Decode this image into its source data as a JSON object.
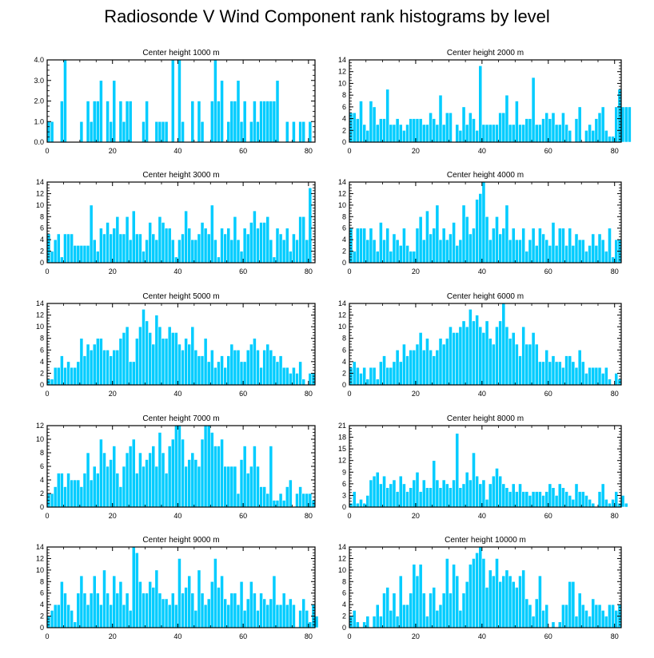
{
  "title": "Radiosonde V Wind Component rank histograms by level",
  "bar_color": "#00ccff",
  "bar_edge_color": "#ffffff",
  "chart_data": [
    {
      "type": "bar",
      "title": "Center height 1000 m",
      "x_start": 0,
      "xlim": [
        0,
        82
      ],
      "ylim": [
        0,
        4
      ],
      "yticks": [
        "0.0",
        "1.0",
        "2.0",
        "3.0",
        "4.0"
      ],
      "ytick_values": [
        0,
        1,
        2,
        3,
        4
      ],
      "xticks": [
        0,
        20,
        40,
        60,
        80
      ],
      "values": [
        1,
        1,
        0,
        0,
        2,
        4,
        0,
        0,
        0,
        0,
        1,
        0,
        2,
        1,
        2,
        2,
        3,
        0,
        2,
        1,
        3,
        0,
        2,
        1,
        2,
        2,
        0,
        0,
        0,
        1,
        2,
        0,
        0,
        1,
        1,
        1,
        1,
        0,
        4,
        0,
        4,
        1,
        0,
        0,
        2,
        0,
        2,
        1,
        0,
        0,
        2,
        4,
        2,
        3,
        0,
        1,
        2,
        2,
        3,
        1,
        2,
        0,
        1,
        2,
        1,
        2,
        2,
        2,
        2,
        2,
        3,
        0,
        0,
        1,
        0,
        1,
        0,
        1,
        1,
        0,
        1,
        0
      ]
    },
    {
      "type": "bar",
      "title": "Center height 2000 m",
      "x_start": 0,
      "xlim": [
        0,
        82
      ],
      "ylim": [
        0,
        14
      ],
      "yticks": [
        "0",
        "2",
        "4",
        "6",
        "8",
        "10",
        "12",
        "14"
      ],
      "ytick_values": [
        0,
        2,
        4,
        6,
        8,
        10,
        12,
        14
      ],
      "xticks": [
        0,
        20,
        40,
        60,
        80
      ],
      "values": [
        5,
        5,
        4,
        7,
        3,
        2,
        7,
        6,
        3,
        4,
        4,
        9,
        3,
        3,
        4,
        3,
        2,
        3,
        4,
        4,
        4,
        4,
        3,
        3,
        5,
        4,
        3,
        8,
        3,
        5,
        5,
        0,
        3,
        2,
        6,
        3,
        5,
        4,
        2,
        13,
        3,
        3,
        3,
        3,
        3,
        5,
        5,
        8,
        3,
        3,
        7,
        3,
        3,
        4,
        4,
        11,
        3,
        3,
        4,
        5,
        4,
        5,
        3,
        3,
        5,
        3,
        2,
        0,
        4,
        6,
        0,
        2,
        3,
        2,
        4,
        5,
        6,
        2,
        1,
        1,
        6,
        9,
        6,
        6,
        6
      ]
    },
    {
      "type": "bar",
      "title": "Center height 3000 m",
      "x_start": 0,
      "xlim": [
        0,
        82
      ],
      "ylim": [
        0,
        14
      ],
      "yticks": [
        "0",
        "2",
        "4",
        "6",
        "8",
        "10",
        "12",
        "14"
      ],
      "ytick_values": [
        0,
        2,
        4,
        6,
        8,
        10,
        12,
        14
      ],
      "xticks": [
        0,
        20,
        40,
        60,
        80
      ],
      "values": [
        5,
        2,
        4,
        5,
        1,
        5,
        5,
        5,
        3,
        3,
        3,
        3,
        3,
        10,
        4,
        2,
        6,
        5,
        7,
        5,
        6,
        8,
        5,
        5,
        8,
        4,
        9,
        5,
        5,
        2,
        4,
        7,
        5,
        4,
        8,
        7,
        6,
        6,
        4,
        1,
        4,
        5,
        9,
        6,
        4,
        4,
        5,
        7,
        6,
        5,
        10,
        4,
        1,
        6,
        5,
        6,
        4,
        8,
        4,
        2,
        6,
        5,
        7,
        9,
        6,
        7,
        7,
        8,
        4,
        1,
        6,
        5,
        4,
        6,
        2,
        5,
        4,
        8,
        8,
        4,
        13
      ]
    },
    {
      "type": "bar",
      "title": "Center height 4000 m",
      "x_start": 0,
      "xlim": [
        0,
        82
      ],
      "ylim": [
        0,
        14
      ],
      "yticks": [
        "0",
        "2",
        "4",
        "6",
        "8",
        "10",
        "12",
        "14"
      ],
      "ytick_values": [
        0,
        2,
        4,
        6,
        8,
        10,
        12,
        14
      ],
      "xticks": [
        0,
        20,
        40,
        60,
        80
      ],
      "values": [
        6,
        2,
        6,
        6,
        6,
        4,
        6,
        4,
        2,
        7,
        4,
        6,
        2,
        5,
        4,
        3,
        6,
        3,
        2,
        2,
        6,
        8,
        4,
        9,
        5,
        6,
        10,
        4,
        6,
        4,
        5,
        7,
        3,
        4,
        10,
        8,
        5,
        6,
        11,
        12,
        14,
        8,
        4,
        6,
        8,
        5,
        6,
        10,
        4,
        6,
        4,
        4,
        6,
        2,
        4,
        6,
        3,
        6,
        5,
        4,
        3,
        7,
        3,
        6,
        6,
        3,
        6,
        3,
        5,
        4,
        4,
        2,
        3,
        5,
        3,
        5,
        4,
        2,
        6,
        1,
        4,
        4
      ]
    },
    {
      "type": "bar",
      "title": "Center height 5000 m",
      "x_start": 0,
      "xlim": [
        0,
        82
      ],
      "ylim": [
        0,
        14
      ],
      "yticks": [
        "0",
        "2",
        "4",
        "6",
        "8",
        "10",
        "12",
        "14"
      ],
      "ytick_values": [
        0,
        2,
        4,
        6,
        8,
        10,
        12,
        14
      ],
      "xticks": [
        0,
        20,
        40,
        60,
        80
      ],
      "values": [
        1,
        1,
        3,
        3,
        5,
        3,
        4,
        3,
        3,
        4,
        8,
        5,
        7,
        6,
        7,
        8,
        8,
        6,
        6,
        5,
        6,
        6,
        8,
        9,
        10,
        4,
        4,
        8,
        10,
        13,
        11,
        9,
        7,
        12,
        10,
        8,
        8,
        10,
        9,
        9,
        7,
        6,
        8,
        7,
        10,
        6,
        5,
        5,
        8,
        4,
        6,
        3,
        4,
        5,
        3,
        5,
        7,
        6,
        6,
        4,
        4,
        6,
        7,
        8,
        6,
        3,
        6,
        7,
        6,
        5,
        4,
        5,
        3,
        3,
        2,
        3,
        2,
        4,
        1,
        0,
        2,
        2
      ]
    },
    {
      "type": "bar",
      "title": "Center height 6000 m",
      "x_start": 0,
      "xlim": [
        0,
        82
      ],
      "ylim": [
        0,
        14
      ],
      "yticks": [
        "0",
        "2",
        "4",
        "6",
        "8",
        "10",
        "12",
        "14"
      ],
      "ytick_values": [
        0,
        2,
        4,
        6,
        8,
        10,
        12,
        14
      ],
      "xticks": [
        0,
        20,
        40,
        60,
        80
      ],
      "values": [
        3,
        4,
        3,
        2,
        3,
        1,
        3,
        3,
        1,
        4,
        5,
        3,
        3,
        4,
        6,
        4,
        7,
        5,
        6,
        6,
        7,
        9,
        6,
        8,
        6,
        5,
        6,
        8,
        7,
        8,
        10,
        9,
        9,
        10,
        11,
        10,
        13,
        11,
        12,
        10,
        9,
        11,
        8,
        7,
        10,
        11,
        14,
        10,
        8,
        9,
        7,
        5,
        10,
        7,
        7,
        9,
        7,
        4,
        4,
        6,
        4,
        5,
        4,
        4,
        3,
        5,
        5,
        4,
        3,
        6,
        4,
        2,
        3,
        3,
        3,
        3,
        2,
        3,
        1,
        0,
        2,
        1
      ]
    },
    {
      "type": "bar",
      "title": "Center height 7000 m",
      "x_start": 0,
      "xlim": [
        0,
        82
      ],
      "ylim": [
        0,
        12
      ],
      "yticks": [
        "0",
        "2",
        "4",
        "6",
        "8",
        "10",
        "12"
      ],
      "ytick_values": [
        0,
        2,
        4,
        6,
        8,
        10,
        12
      ],
      "xticks": [
        0,
        20,
        40,
        60,
        80
      ],
      "values": [
        2,
        2,
        3,
        5,
        5,
        3,
        5,
        4,
        4,
        4,
        3,
        5,
        8,
        4,
        6,
        5,
        10,
        8,
        6,
        7,
        9,
        5,
        3,
        6,
        8,
        9,
        10,
        5,
        8,
        6,
        7,
        8,
        9,
        6,
        11,
        8,
        5,
        9,
        10,
        12,
        12,
        10,
        6,
        7,
        8,
        7,
        6,
        10,
        12,
        12,
        11,
        9,
        9,
        10,
        6,
        6,
        6,
        6,
        2,
        7,
        9,
        5,
        6,
        9,
        6,
        3,
        3,
        2,
        9,
        1,
        1,
        2,
        1,
        3,
        4,
        0,
        2,
        3,
        2,
        2,
        2,
        1
      ]
    },
    {
      "type": "bar",
      "title": "Center height 8000 m",
      "x_start": 0,
      "xlim": [
        0,
        82
      ],
      "ylim": [
        0,
        21
      ],
      "yticks": [
        "0",
        "3",
        "6",
        "9",
        "12",
        "15",
        "18",
        "21"
      ],
      "ytick_values": [
        0,
        3,
        6,
        9,
        12,
        15,
        18,
        21
      ],
      "xticks": [
        0,
        20,
        40,
        60,
        80
      ],
      "values": [
        1,
        4,
        1,
        2,
        1,
        3,
        7,
        8,
        9,
        6,
        8,
        5,
        6,
        7,
        4,
        8,
        6,
        4,
        5,
        7,
        9,
        4,
        7,
        5,
        5,
        12,
        7,
        5,
        7,
        6,
        5,
        7,
        19,
        5,
        6,
        9,
        7,
        14,
        8,
        6,
        7,
        2,
        6,
        8,
        10,
        8,
        6,
        5,
        4,
        6,
        4,
        6,
        4,
        4,
        3,
        4,
        4,
        4,
        3,
        4,
        6,
        5,
        3,
        6,
        5,
        4,
        3,
        2,
        6,
        4,
        4,
        3,
        2,
        1,
        0,
        4,
        6,
        2,
        1,
        2,
        4,
        1,
        3,
        1
      ]
    },
    {
      "type": "bar",
      "title": "Center height 9000 m",
      "x_start": 0,
      "xlim": [
        0,
        82
      ],
      "ylim": [
        0,
        14
      ],
      "yticks": [
        "0",
        "2",
        "4",
        "6",
        "8",
        "10",
        "12",
        "14"
      ],
      "ytick_values": [
        0,
        2,
        4,
        6,
        8,
        10,
        12,
        14
      ],
      "xticks": [
        0,
        20,
        40,
        60,
        80
      ],
      "values": [
        2,
        3,
        4,
        4,
        8,
        6,
        4,
        3,
        1,
        6,
        9,
        6,
        4,
        6,
        9,
        6,
        4,
        10,
        6,
        4,
        9,
        6,
        8,
        4,
        6,
        3,
        14,
        13,
        8,
        6,
        6,
        8,
        7,
        10,
        6,
        5,
        5,
        4,
        6,
        4,
        12,
        6,
        7,
        9,
        6,
        3,
        10,
        6,
        4,
        5,
        8,
        12,
        7,
        9,
        5,
        4,
        6,
        6,
        4,
        8,
        3,
        5,
        8,
        6,
        3,
        6,
        5,
        4,
        5,
        9,
        4,
        4,
        6,
        4,
        5,
        4,
        0,
        3,
        5,
        3,
        1,
        4,
        2
      ]
    },
    {
      "type": "bar",
      "title": "Center height 10000 m",
      "x_start": 0,
      "xlim": [
        0,
        82
      ],
      "ylim": [
        0,
        14
      ],
      "yticks": [
        "0",
        "2",
        "4",
        "6",
        "8",
        "10",
        "12",
        "14"
      ],
      "ytick_values": [
        0,
        2,
        4,
        6,
        8,
        10,
        12,
        14
      ],
      "xticks": [
        0,
        20,
        40,
        60,
        80
      ],
      "values": [
        2,
        3,
        1,
        0,
        1,
        2,
        0,
        2,
        4,
        2,
        6,
        7,
        3,
        6,
        2,
        9,
        4,
        4,
        6,
        11,
        9,
        11,
        6,
        2,
        6,
        7,
        3,
        4,
        6,
        12,
        6,
        11,
        9,
        3,
        6,
        8,
        11,
        12,
        13,
        14,
        12,
        7,
        10,
        9,
        12,
        8,
        9,
        10,
        9,
        8,
        7,
        9,
        10,
        5,
        4,
        2,
        5,
        9,
        3,
        4,
        0,
        1,
        0,
        1,
        4,
        4,
        8,
        8,
        2,
        6,
        4,
        3,
        2,
        5,
        4,
        4,
        3,
        2,
        4,
        4,
        3,
        4
      ]
    }
  ]
}
